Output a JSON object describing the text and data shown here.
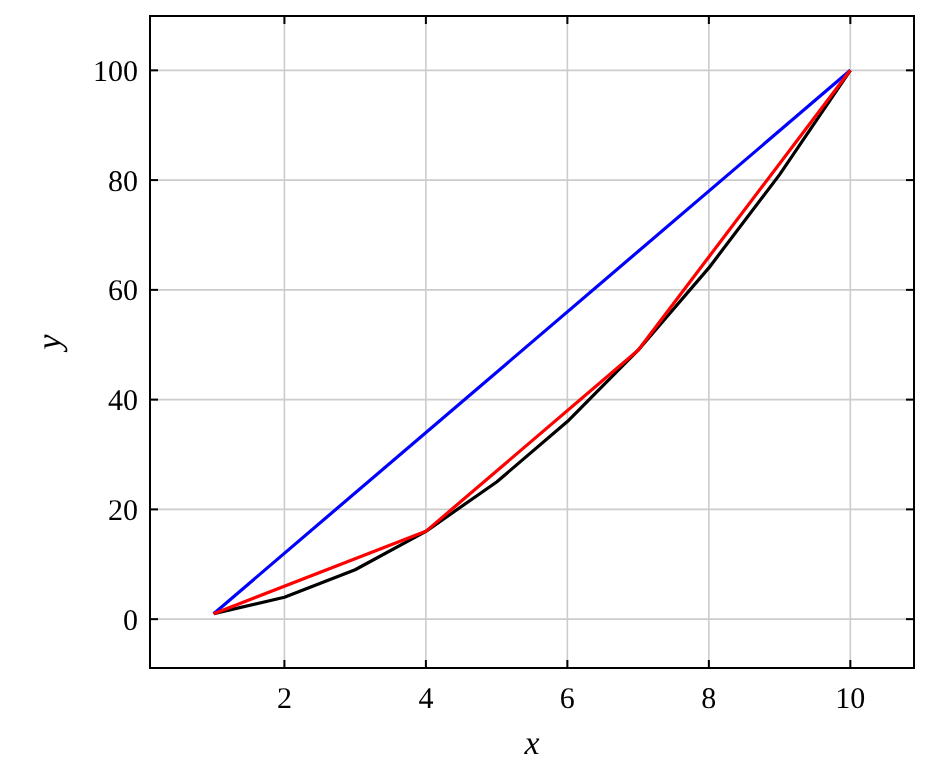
{
  "chart_data": {
    "type": "line",
    "xlabel": "x",
    "ylabel": "y",
    "xlim": [
      0.1,
      10.9
    ],
    "ylim": [
      -8.9,
      109.9
    ],
    "xticks": [
      2,
      4,
      6,
      8,
      10
    ],
    "yticks": [
      0,
      20,
      40,
      60,
      80,
      100
    ],
    "grid": true,
    "marker": "none",
    "line_style": "solid",
    "series": [
      {
        "color": "#000000",
        "x": [
          1,
          2,
          3,
          4,
          5,
          6,
          7,
          8,
          9,
          10
        ],
        "values": [
          1,
          4,
          9,
          16,
          25,
          36,
          49,
          64,
          81,
          100
        ]
      },
      {
        "color": "#0000ff",
        "x": [
          1,
          10
        ],
        "values": [
          1,
          100
        ]
      },
      {
        "color": "#ff0000",
        "x": [
          1,
          4,
          7,
          10
        ],
        "values": [
          1,
          16,
          49,
          100
        ]
      }
    ]
  }
}
